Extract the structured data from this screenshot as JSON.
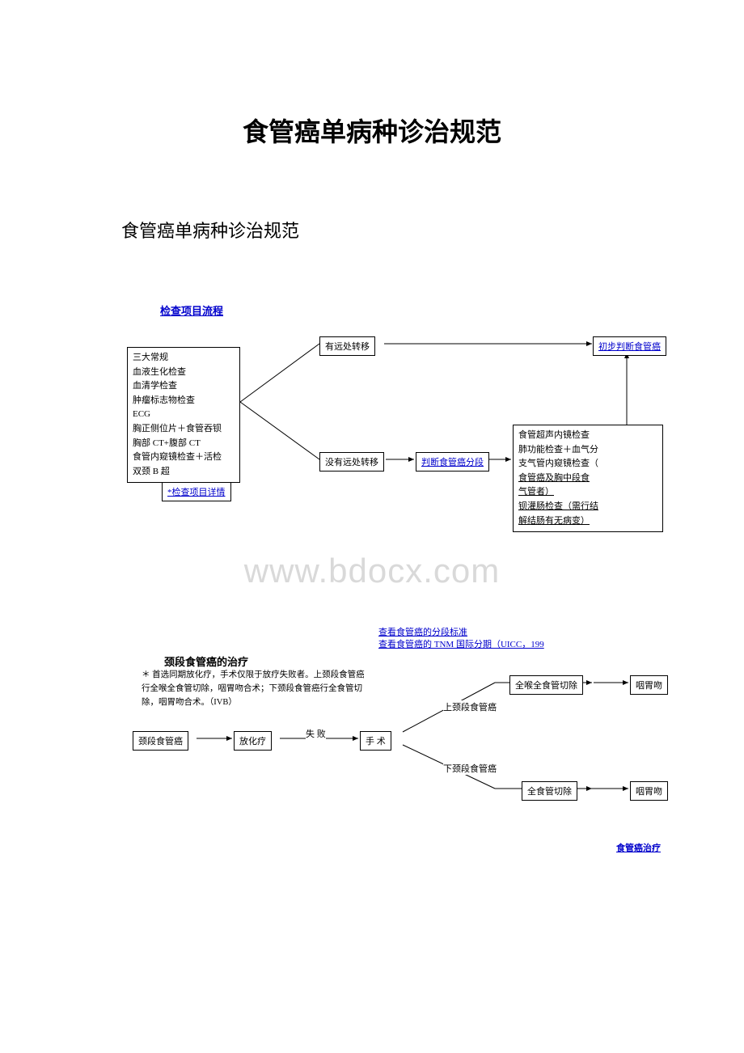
{
  "doc": {
    "title": "食管癌单病种诊治规范",
    "subtitle": "食管癌单病种诊治规范",
    "watermark": "www.bdocx.com"
  },
  "flow1": {
    "heading": "检查项目流程",
    "exam_box_lines": [
      "三大常规",
      "血液生化检查",
      "血清学检查",
      "肿瘤标志物检查",
      "ECG",
      "胸正侧位片＋食管吞钡",
      "胸部 CT+腹部 CT",
      "食管内窥镜检查＋活检",
      "双颈 B 超"
    ],
    "detail_link": "*检查项目详情",
    "branch_top": "有远处转移",
    "branch_bottom": "没有远处转移",
    "result_top": "初步判断食管癌",
    "mid_link": "判断食管癌分段",
    "right_box_lines": [
      "食管超声内镜检查",
      "肺功能检查＋血气分",
      "支气管内窥镜检查（",
      "食管癌及胸中段食",
      "气管者）",
      "钡灌肠检查（需行结",
      "解结肠有无病变）"
    ],
    "right_box_underline_idx": [
      3,
      4,
      5,
      6
    ]
  },
  "flow2": {
    "std_link1": "查看食管癌的分段标准",
    "std_link2": "查看食管癌的 TNM 国际分期（UICC，199",
    "heading": "颈段食管癌的治疗",
    "note": "＊ 首选同期放化疗，手术仅限于放疗失败者。上颈段食管癌行全喉全食管切除，咽胃吻合术；下颈段食管癌行全食管切除，咽胃吻合术。（IVB）",
    "n_start": "颈段食管癌",
    "n_chemo": "放化疗",
    "n_fail": "失 败",
    "n_surgery": "手 术",
    "n_upper": "上颈段食管癌",
    "n_lower": "下颈段食管癌",
    "n_top_surgery": "全喉全食管切除",
    "n_bottom_surgery": "全食管切除",
    "n_result1": "咽胃吻",
    "n_result2": "咽胃吻",
    "bottom_link": "食管癌治疗"
  },
  "style": {
    "link_color": "#0000cc",
    "text_color": "#000000",
    "bg_color": "#ffffff",
    "watermark_color": "#d9d9d9"
  }
}
